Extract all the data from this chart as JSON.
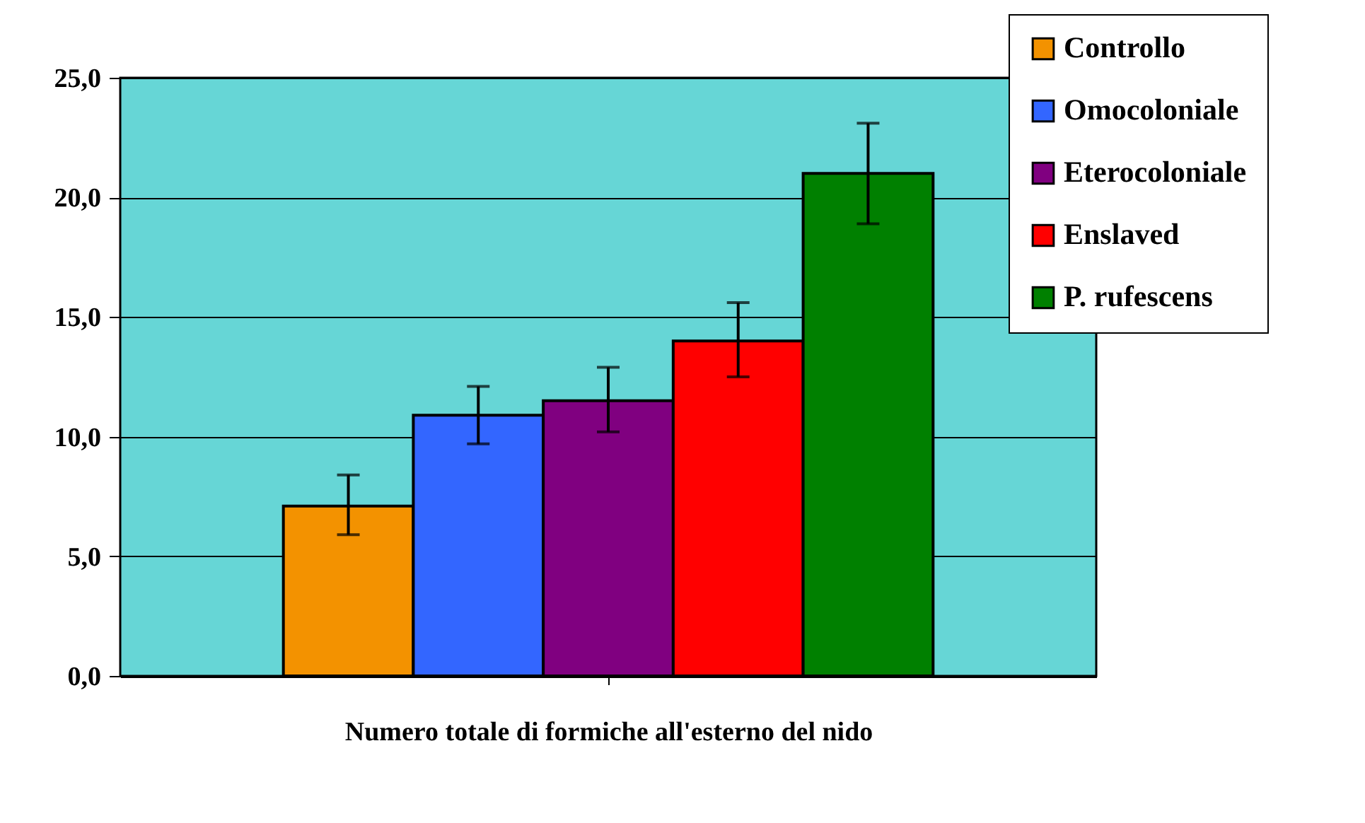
{
  "chart_data": {
    "type": "bar",
    "xlabel": "Numero totale di formiche all'esterno del nido",
    "categories": [
      null
    ],
    "series": [
      {
        "name": "Controllo",
        "color": "#f39200",
        "values": [
          7.1
        ],
        "errors": [
          [
            5.9,
            8.4
          ]
        ]
      },
      {
        "name": "Omocoloniale",
        "color": "#3366ff",
        "values": [
          10.9
        ],
        "errors": [
          [
            9.7,
            12.1
          ]
        ]
      },
      {
        "name": "Eterocoloniale",
        "color": "#800080",
        "values": [
          11.5
        ],
        "errors": [
          [
            10.2,
            12.9
          ]
        ]
      },
      {
        "name": "Enslaved",
        "color": "#ff0000",
        "values": [
          14.0
        ],
        "errors": [
          [
            12.5,
            15.6
          ]
        ]
      },
      {
        "name": "P. rufescens",
        "color": "#008000",
        "values": [
          21.0
        ],
        "errors": [
          [
            18.9,
            23.1
          ]
        ]
      }
    ],
    "ylim": [
      0,
      25
    ],
    "yticks": [
      {
        "value": 0,
        "label": "0,0"
      },
      {
        "value": 5,
        "label": "5,0"
      },
      {
        "value": 10,
        "label": "10,0"
      },
      {
        "value": 15,
        "label": "15,0"
      },
      {
        "value": 20,
        "label": "20,0"
      },
      {
        "value": 25,
        "label": "25,0"
      }
    ],
    "grid": "y",
    "legend": "top right"
  }
}
